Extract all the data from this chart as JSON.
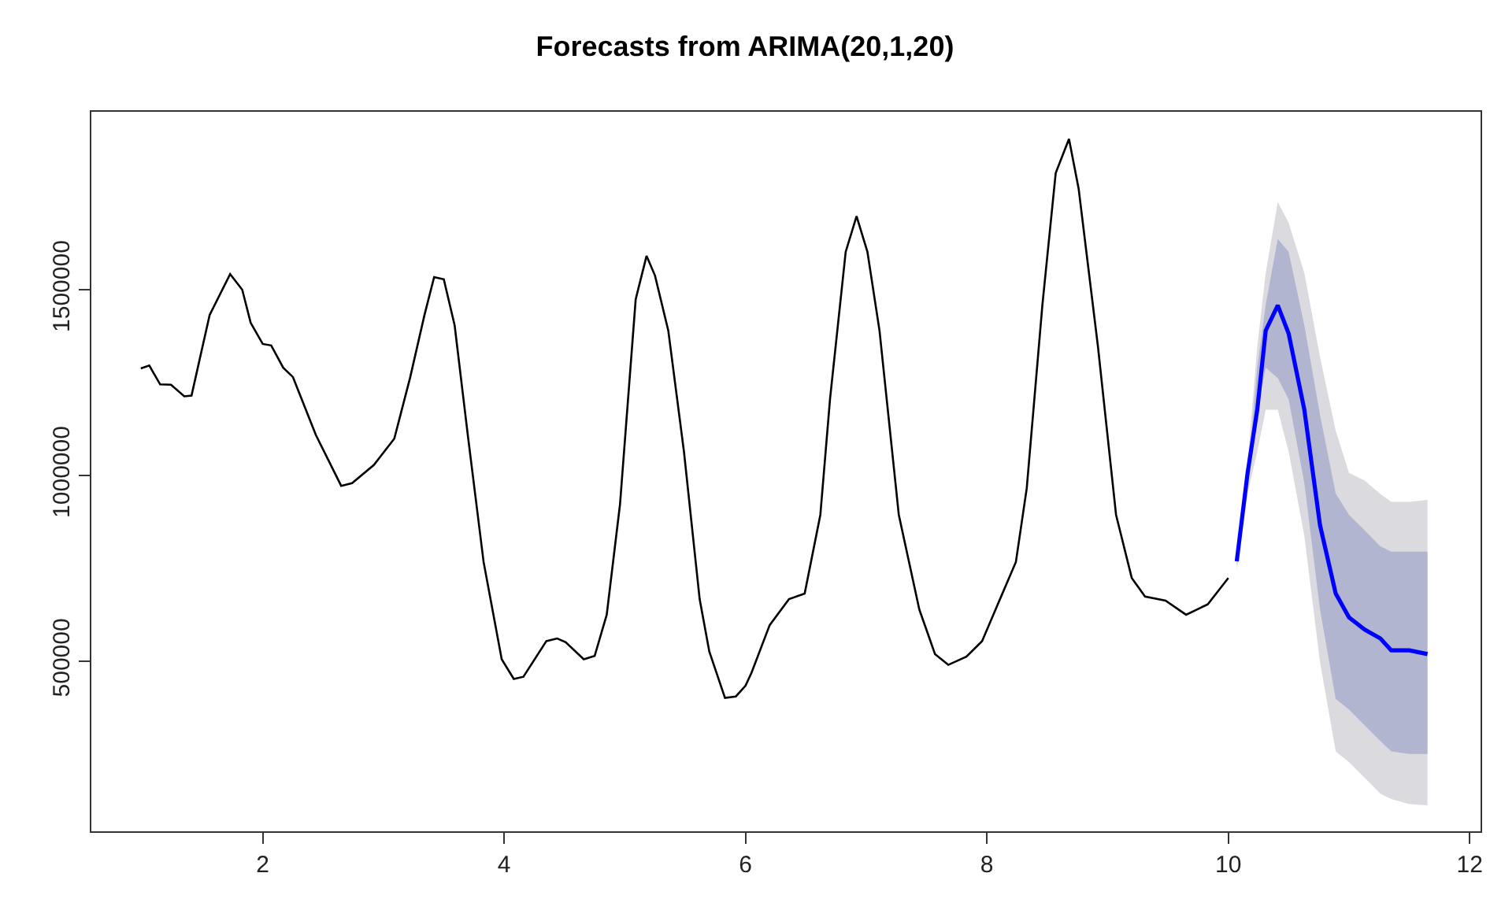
{
  "chart_data": {
    "type": "line",
    "title": "Forecasts from ARIMA(20,1,20)",
    "xlim": [
      0.58,
      12.09
    ],
    "ylim": [
      42000,
      1979000
    ],
    "xticks": [
      2,
      4,
      6,
      8,
      10,
      12
    ],
    "yticks": [
      500000,
      1000000,
      1500000
    ],
    "series": [
      {
        "color": "#dbdbdf",
        "x": [
          10.07,
          10.16,
          10.24,
          10.31,
          10.41,
          10.5,
          10.63,
          10.76,
          10.89,
          11.0,
          11.13,
          11.26,
          11.35,
          11.5,
          11.65
        ],
        "values": [
          null,
          null,
          null,
          null,
          null,
          null,
          null,
          null,
          null,
          null,
          null,
          null,
          null,
          null,
          null
        ],
        "lower": [
          745000,
          951000,
          1064000,
          1177000,
          1177000,
          1064000,
          837000,
          497000,
          257000,
          228000,
          186000,
          143000,
          129000,
          115000,
          112000
        ],
        "upper": [
          795000,
          1036000,
          1347000,
          1545000,
          1736000,
          1680000,
          1545000,
          1319000,
          1120000,
          1007000,
          986000,
          950000,
          929000,
          929000,
          934000
        ]
      },
      {
        "color": "#b1b5cf",
        "x": [
          10.07,
          10.16,
          10.24,
          10.31,
          10.41,
          10.5,
          10.63,
          10.76,
          10.89,
          11.0,
          11.13,
          11.26,
          11.35,
          11.5,
          11.65
        ],
        "values": [
          null,
          null,
          null,
          null,
          null,
          null,
          null,
          null,
          null,
          null,
          null,
          null,
          null,
          null,
          null
        ],
        "lower": [
          759000,
          979000,
          1177000,
          1290000,
          1262000,
          1205000,
          979000,
          639000,
          398000,
          370000,
          327000,
          285000,
          257000,
          250000,
          250000
        ],
        "upper": [
          788000,
          993000,
          1290000,
          1460000,
          1637000,
          1602000,
          1404000,
          1163000,
          951000,
          894000,
          852000,
          809000,
          795000,
          795000,
          795000
        ]
      },
      {
        "color": "#000000",
        "x": [
          0.99,
          1.06,
          1.15,
          1.24,
          1.35,
          1.41,
          1.56,
          1.73,
          1.83,
          1.9,
          2.0,
          2.07,
          2.17,
          2.25,
          2.44,
          2.65,
          2.74,
          2.92,
          3.09,
          3.22,
          3.34,
          3.42,
          3.5,
          3.59,
          3.7,
          3.83,
          3.98,
          4.08,
          4.16,
          4.35,
          4.44,
          4.51,
          4.66,
          4.75,
          4.85,
          4.96,
          5.09,
          5.18,
          5.25,
          5.36,
          5.49,
          5.62,
          5.7,
          5.83,
          5.92,
          6.0,
          6.05,
          6.2,
          6.36,
          6.49,
          6.62,
          6.7,
          6.83,
          6.92,
          7.01,
          7.11,
          7.27,
          7.44,
          7.57,
          7.68,
          7.83,
          7.96,
          8.09,
          8.24,
          8.33,
          8.46,
          8.57,
          8.68,
          8.76,
          8.92,
          9.07,
          9.2,
          9.31,
          9.48,
          9.65,
          9.83,
          10.0
        ],
        "values": [
          1288000,
          1296000,
          1245000,
          1244000,
          1213000,
          1215000,
          1432000,
          1542000,
          1500000,
          1411000,
          1354000,
          1350000,
          1290000,
          1265000,
          1109000,
          972000,
          979000,
          1028000,
          1099000,
          1262000,
          1432000,
          1534000,
          1528000,
          1404000,
          1106000,
          767000,
          505000,
          452000,
          458000,
          554000,
          561000,
          551000,
          505000,
          514000,
          625000,
          922000,
          1474000,
          1591000,
          1538000,
          1390000,
          1064000,
          667000,
          526000,
          401000,
          405000,
          434000,
          469000,
          597000,
          667000,
          682000,
          894000,
          1205000,
          1602000,
          1698000,
          1602000,
          1390000,
          894000,
          639000,
          519000,
          490000,
          512000,
          554000,
          653000,
          767000,
          965000,
          1460000,
          1814000,
          1906000,
          1772000,
          1347000,
          894000,
          724000,
          674000,
          663000,
          625000,
          653000,
          724000
        ]
      },
      {
        "color": "#0000ff",
        "x": [
          10.07,
          10.16,
          10.24,
          10.31,
          10.41,
          10.5,
          10.63,
          10.76,
          10.89,
          11.0,
          11.13,
          11.26,
          11.35,
          11.5,
          11.65
        ],
        "values": [
          769000,
          1007000,
          1177000,
          1390000,
          1458000,
          1382000,
          1177000,
          866000,
          682000,
          618000,
          585000,
          561000,
          529000,
          529000,
          519000
        ]
      }
    ]
  }
}
